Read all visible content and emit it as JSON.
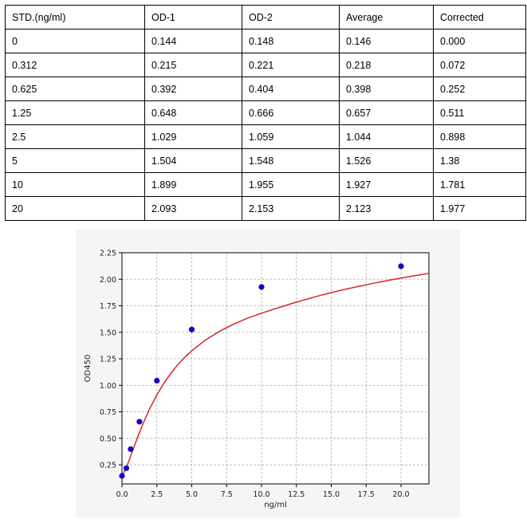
{
  "table": {
    "headers": [
      "STD.(ng/ml)",
      "OD-1",
      "OD-2",
      "Average",
      "Corrected"
    ],
    "rows": [
      [
        "0",
        "0.144",
        "0.148",
        "0.146",
        "0.000"
      ],
      [
        "0.312",
        "0.215",
        "0.221",
        "0.218",
        "0.072"
      ],
      [
        "0.625",
        "0.392",
        "0.404",
        "0.398",
        "0.252"
      ],
      [
        "1.25",
        "0.648",
        "0.666",
        "0.657",
        "0.511"
      ],
      [
        "2.5",
        "1.029",
        "1.059",
        "1.044",
        "0.898"
      ],
      [
        "5",
        "1.504",
        "1.548",
        "1.526",
        "1.38"
      ],
      [
        "10",
        "1.899",
        "1.955",
        "1.927",
        "1.781"
      ],
      [
        "20",
        "2.093",
        "2.153",
        "2.123",
        "1.977"
      ]
    ]
  },
  "chart_data": {
    "type": "scatter",
    "xlabel": "ng/ml",
    "ylabel": "OD450",
    "xlim": [
      0,
      22
    ],
    "ylim": [
      0.07,
      2.25
    ],
    "xticks": [
      0.0,
      2.5,
      5.0,
      7.5,
      10.0,
      12.5,
      15.0,
      17.5,
      20.0
    ],
    "yticks": [
      0.25,
      0.5,
      0.75,
      1.0,
      1.25,
      1.5,
      1.75,
      2.0,
      2.25
    ],
    "xtick_labels": [
      "0.0",
      "2.5",
      "5.0",
      "7.5",
      "10.0",
      "12.5",
      "15.0",
      "17.5",
      "20.0"
    ],
    "ytick_labels": [
      "0.25",
      "0.50",
      "0.75",
      "1.00",
      "1.25",
      "1.50",
      "1.75",
      "2.00",
      "2.25"
    ],
    "grid": true,
    "points": {
      "x": [
        0,
        0.312,
        0.625,
        1.25,
        2.5,
        5,
        10,
        20
      ],
      "y": [
        0.146,
        0.218,
        0.398,
        0.657,
        1.044,
        1.526,
        1.927,
        2.123
      ],
      "color": "#1a00c8"
    },
    "fit_curve": {
      "x": [
        0,
        0.25,
        0.5,
        0.75,
        1,
        1.5,
        2,
        2.5,
        3,
        3.5,
        4,
        4.5,
        5,
        6,
        7,
        8,
        9,
        10,
        11,
        12,
        13,
        14,
        15,
        16,
        17,
        18,
        19,
        20,
        21,
        22
      ],
      "y": [
        0.146,
        0.205,
        0.289,
        0.379,
        0.469,
        0.636,
        0.783,
        0.91,
        1.019,
        1.113,
        1.195,
        1.265,
        1.326,
        1.428,
        1.51,
        1.577,
        1.633,
        1.68,
        1.723,
        1.764,
        1.803,
        1.84,
        1.874,
        1.905,
        1.934,
        1.961,
        1.987,
        2.011,
        2.034,
        2.056
      ],
      "color": "#d62728"
    }
  }
}
